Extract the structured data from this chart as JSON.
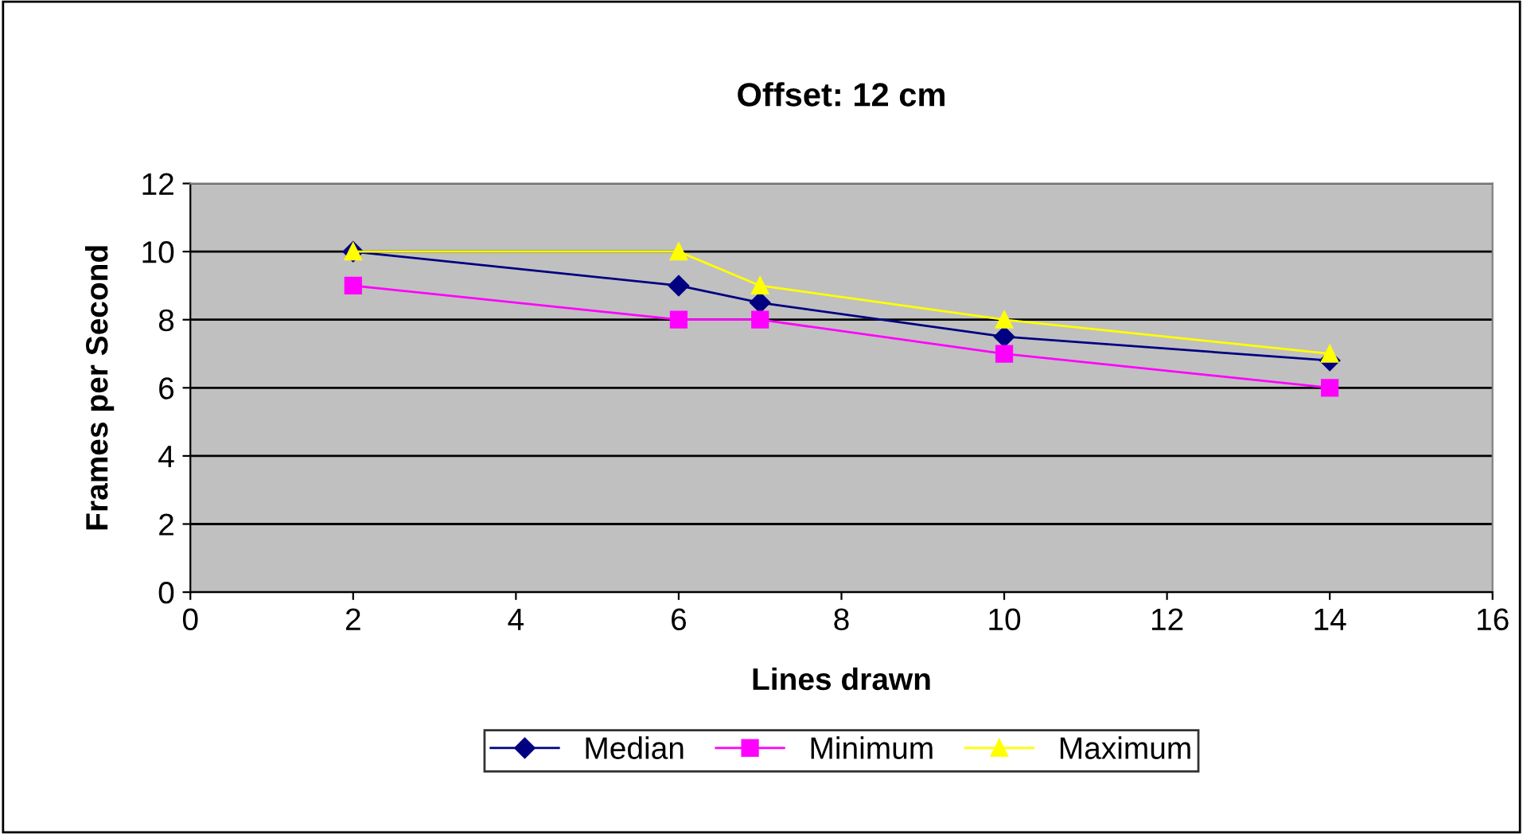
{
  "chart_data": {
    "type": "line",
    "title": "Offset: 12 cm",
    "xlabel": "Lines drawn",
    "ylabel": "Frames per Second",
    "x": [
      2,
      6,
      7,
      10,
      14
    ],
    "series": [
      {
        "name": "Median",
        "color": "#000080",
        "marker": "diamond",
        "values": [
          10,
          9,
          8.5,
          7.5,
          6.8
        ]
      },
      {
        "name": "Minimum",
        "color": "#ff00ff",
        "marker": "square",
        "values": [
          9,
          8,
          8,
          7,
          6
        ]
      },
      {
        "name": "Maximum",
        "color": "#ffff00",
        "marker": "triangle",
        "values": [
          10,
          10,
          9,
          8,
          7
        ]
      }
    ],
    "xlim": [
      0,
      16
    ],
    "xticks": [
      0,
      2,
      4,
      6,
      8,
      10,
      12,
      14,
      16
    ],
    "ylim": [
      0,
      12
    ],
    "yticks": [
      0,
      2,
      4,
      6,
      8,
      10,
      12
    ],
    "grid": "y",
    "legend": "bottom",
    "line_style": "solid"
  }
}
